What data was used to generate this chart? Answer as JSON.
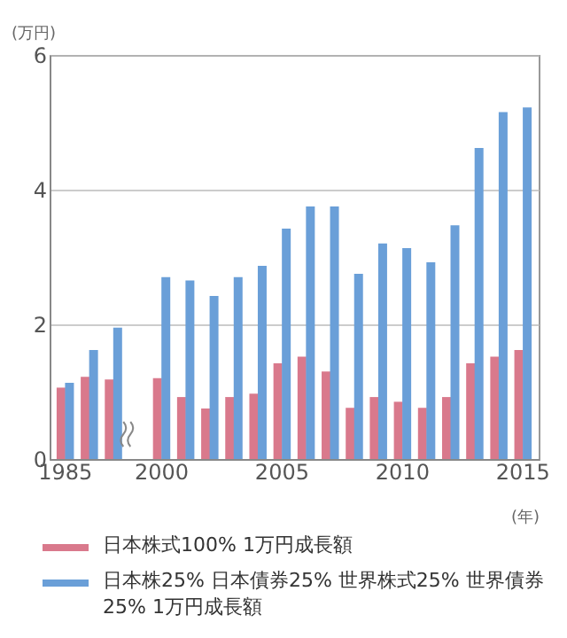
{
  "chart_data": {
    "type": "bar",
    "xlabel": "(年)",
    "ylabel": "(万円)",
    "categories": [
      "1985",
      null,
      null,
      null,
      "2000",
      null,
      null,
      null,
      null,
      "2005",
      null,
      null,
      null,
      null,
      "2010",
      null,
      null,
      null,
      null,
      "2015"
    ],
    "series": [
      {
        "name": "日本株式100% 1万円成長額",
        "color": "#d9798c",
        "values": [
          1.06,
          1.22,
          1.18,
          null,
          1.2,
          0.92,
          0.75,
          0.92,
          0.97,
          1.42,
          1.52,
          1.3,
          0.76,
          0.92,
          0.85,
          0.76,
          0.92,
          1.42,
          1.52,
          1.62
        ]
      },
      {
        "name": "日本株25% 日本債券25% 世界株式25% 世界債券25% 1万円成長額",
        "color": "#6a9fd8",
        "values": [
          1.13,
          1.62,
          1.95,
          null,
          2.7,
          2.65,
          2.42,
          2.7,
          2.87,
          3.42,
          3.75,
          3.75,
          2.75,
          3.2,
          3.13,
          2.92,
          3.47,
          4.62,
          5.15,
          5.22
        ]
      }
    ],
    "ylim": [
      0,
      6
    ],
    "yticks": [
      0,
      2,
      4,
      6
    ],
    "grid": "y",
    "legend": "bottom"
  }
}
